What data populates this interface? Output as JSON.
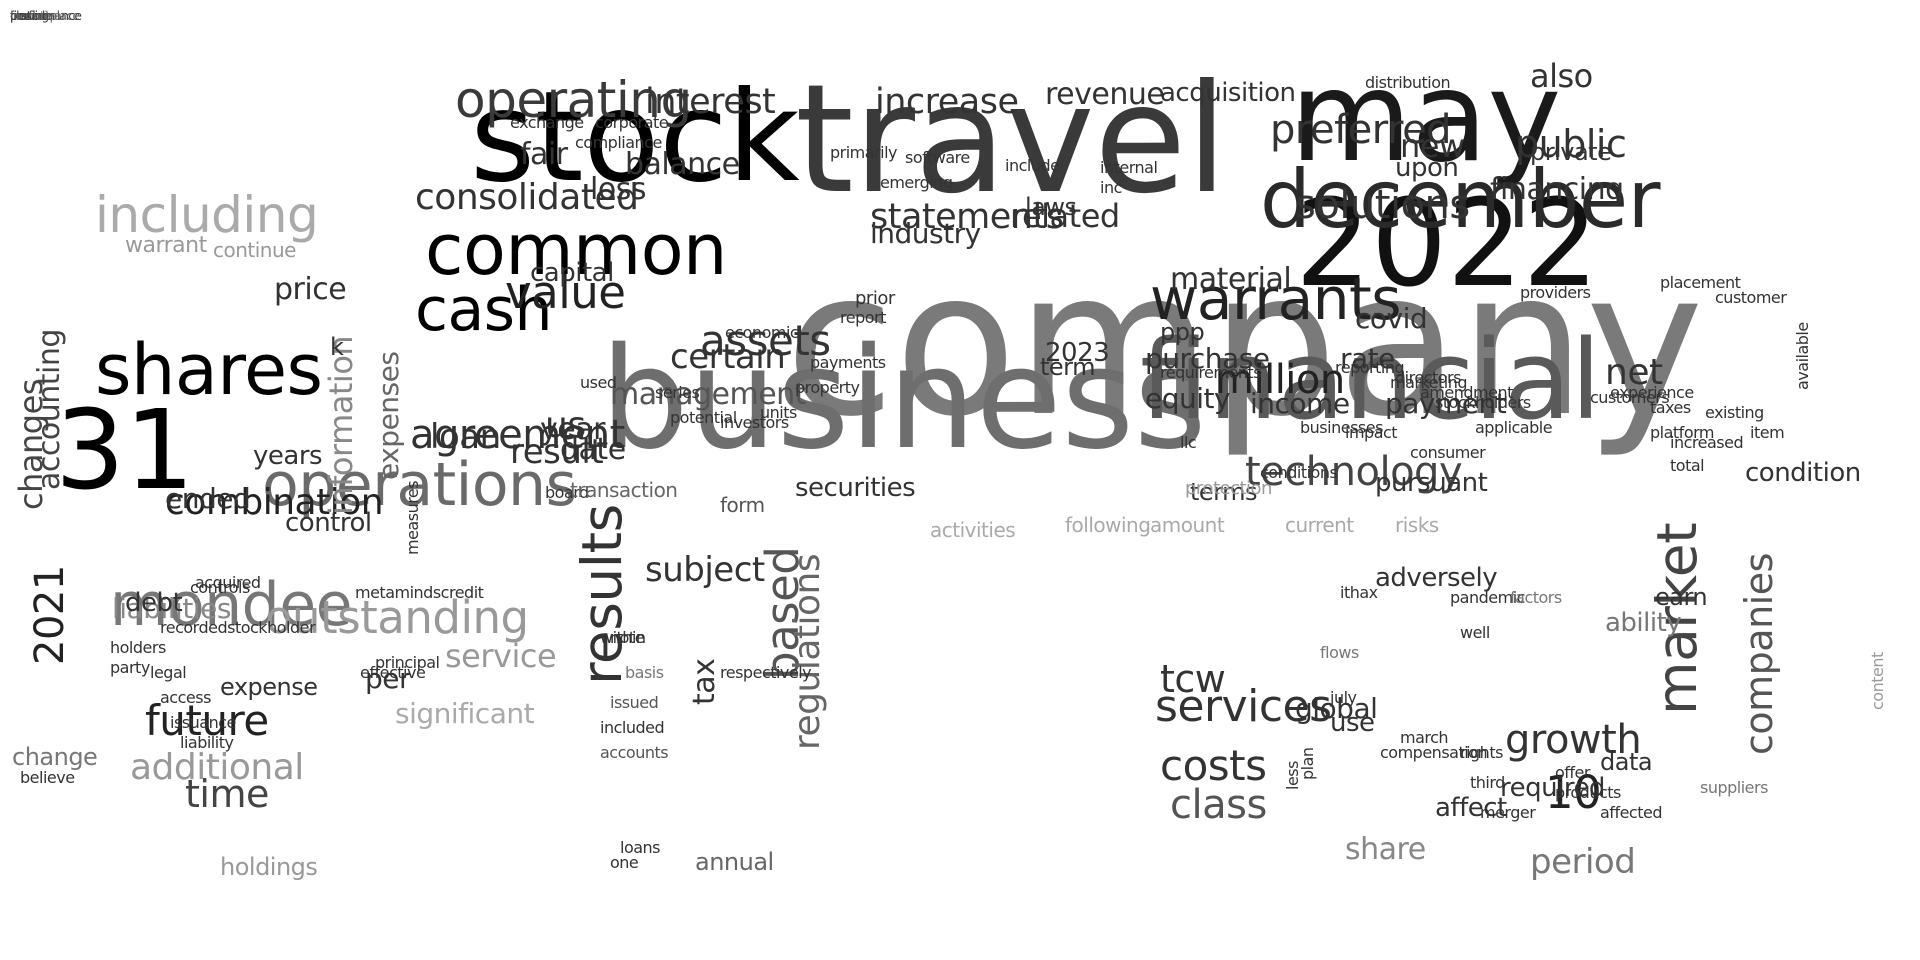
{
  "words": [
    {
      "text": "company",
      "size": 1,
      "shade": "#7a7a7a"
    },
    {
      "text": "travel",
      "size": 1,
      "shade": "#3a3a3a"
    },
    {
      "text": "business",
      "size": 1,
      "shade": "#6e6e6e"
    },
    {
      "text": "financial",
      "size": 1,
      "shade": "#5a5a5a"
    },
    {
      "text": "stock",
      "size": 1,
      "shade": "#000000"
    },
    {
      "text": "may",
      "size": 1,
      "shade": "#1a1a1a"
    },
    {
      "text": "2022",
      "size": 1,
      "shade": "#111111"
    },
    {
      "text": "december",
      "size": 1,
      "shade": "#2a2a2a"
    },
    {
      "text": "31",
      "size": 1,
      "shade": "#000000"
    },
    {
      "text": "operations",
      "size": 1,
      "shade": "#6a6a6a"
    },
    {
      "text": "shares",
      "size": 1,
      "shade": "#000000"
    },
    {
      "text": "mondee",
      "size": 1,
      "shade": "#777777"
    },
    {
      "text": "warrants",
      "size": 1,
      "shade": "#222222"
    },
    {
      "text": "common",
      "size": 1,
      "shade": "#000000"
    },
    {
      "text": "operating",
      "size": 1,
      "shade": "#3a3a3a"
    },
    {
      "text": "cash",
      "size": 1,
      "shade": "#000000"
    },
    {
      "text": "consolidated",
      "size": 1,
      "shade": "#333333"
    },
    {
      "text": "value",
      "size": 1,
      "shade": "#222222"
    },
    {
      "text": "including",
      "size": 1,
      "shade": "#aaaaaa"
    },
    {
      "text": "technology",
      "size": 1,
      "shade": "#444444"
    },
    {
      "text": "results",
      "size": 1,
      "shade": "#333333"
    },
    {
      "text": "statements",
      "size": 1,
      "shade": "#333333"
    },
    {
      "text": "solutions",
      "size": 1,
      "shade": "#333333"
    },
    {
      "text": "assets",
      "size": 1,
      "shade": "#333333"
    },
    {
      "text": "agreement",
      "size": 1,
      "shade": "#333333"
    },
    {
      "text": "public",
      "size": 1,
      "shade": "#333333"
    },
    {
      "text": "preferred",
      "size": 1,
      "shade": "#333333"
    },
    {
      "text": "market",
      "size": 1,
      "shade": "#444444"
    },
    {
      "text": "services",
      "size": 1,
      "shade": "#333333"
    },
    {
      "text": "million",
      "size": 1,
      "shade": "#222222"
    },
    {
      "text": "related",
      "size": 1,
      "shade": "#333333"
    },
    {
      "text": "interest",
      "size": 1,
      "shade": "#333333"
    },
    {
      "text": "revenue",
      "size": 1,
      "shade": "#333333"
    },
    {
      "text": "increase",
      "size": 1,
      "shade": "#333333"
    },
    {
      "text": "acquisition",
      "size": 1,
      "shade": "#333333"
    },
    {
      "text": "outstanding",
      "size": 1,
      "shade": "#999999"
    },
    {
      "text": "combination",
      "size": 1,
      "shade": "#222222"
    },
    {
      "text": "future",
      "size": 1,
      "shade": "#222222"
    },
    {
      "text": "based",
      "size": 1,
      "shade": "#555555"
    },
    {
      "text": "costs",
      "size": 1,
      "shade": "#333333"
    },
    {
      "text": "class",
      "size": 1,
      "shade": "#555555"
    },
    {
      "text": "tcw",
      "size": 1,
      "shade": "#333333"
    },
    {
      "text": "growth",
      "size": 1,
      "shade": "#333333"
    },
    {
      "text": "10",
      "size": 1,
      "shade": "#222222"
    },
    {
      "text": "2021",
      "size": 1,
      "shade": "#222222"
    },
    {
      "text": "ended",
      "size": 1,
      "shade": "#333333"
    },
    {
      "text": "additional",
      "size": 1,
      "shade": "#999999"
    },
    {
      "text": "time",
      "size": 1,
      "shade": "#444444"
    },
    {
      "text": "service",
      "size": 1,
      "shade": "#999999"
    },
    {
      "text": "subject",
      "size": 1,
      "shade": "#333333"
    },
    {
      "text": "loan",
      "size": 1,
      "shade": "#333333"
    },
    {
      "text": "certain",
      "size": 1,
      "shade": "#333333"
    },
    {
      "text": "management",
      "size": 1,
      "shade": "#555555"
    },
    {
      "text": "result",
      "size": 1,
      "shade": "#333333"
    },
    {
      "text": "net",
      "size": 1,
      "shade": "#333333"
    },
    {
      "text": "also",
      "size": 1,
      "shade": "#333333"
    },
    {
      "text": "financing",
      "size": 1,
      "shade": "#333333"
    },
    {
      "text": "new",
      "size": 1,
      "shade": "#333333"
    },
    {
      "text": "upon",
      "size": 1,
      "shade": "#333333"
    },
    {
      "text": "year",
      "size": 1,
      "shade": "#333333"
    },
    {
      "text": "us",
      "size": 1,
      "shade": "#333333"
    },
    {
      "text": "date",
      "size": 1,
      "shade": "#333333"
    },
    {
      "text": "price",
      "size": 1,
      "shade": "#333333"
    },
    {
      "text": "information",
      "size": 1,
      "shade": "#888888"
    },
    {
      "text": "expenses",
      "size": 1,
      "shade": "#666666"
    },
    {
      "text": "changes",
      "size": 1,
      "shade": "#444444"
    },
    {
      "text": "accounting",
      "size": 1,
      "shade": "#444444"
    },
    {
      "text": "liabilities",
      "size": 1,
      "shade": "#888888"
    },
    {
      "text": "share",
      "size": 1,
      "shade": "#888888"
    },
    {
      "text": "period",
      "size": 1,
      "shade": "#777777"
    },
    {
      "text": "companies",
      "size": 1,
      "shade": "#555555"
    },
    {
      "text": "ppp",
      "size": 1,
      "shade": "#333333"
    },
    {
      "text": "fair",
      "size": 1,
      "shade": "#333333"
    },
    {
      "text": "loss",
      "size": 1,
      "shade": "#333333"
    },
    {
      "text": "balance",
      "size": 1,
      "shade": "#333333"
    },
    {
      "text": "laws",
      "size": 1,
      "shade": "#333333"
    },
    {
      "text": "material",
      "size": 1,
      "shade": "#333333"
    },
    {
      "text": "payment",
      "size": 1,
      "shade": "#333333"
    },
    {
      "text": "covid",
      "size": 1,
      "shade": "#333333"
    },
    {
      "text": "rate",
      "size": 1,
      "shade": "#333333"
    },
    {
      "text": "income",
      "size": 1,
      "shade": "#333333"
    },
    {
      "text": "equity",
      "size": 1,
      "shade": "#333333"
    },
    {
      "text": "purchase",
      "size": 1,
      "shade": "#333333"
    },
    {
      "text": "term",
      "size": 1,
      "shade": "#333333"
    },
    {
      "text": "2023",
      "size": 1,
      "shade": "#333333"
    },
    {
      "text": "industry",
      "size": 1,
      "shade": "#333333"
    },
    {
      "text": "capital",
      "size": 1,
      "shade": "#333333"
    },
    {
      "text": "condition",
      "size": 1,
      "shade": "#333333"
    },
    {
      "text": "pursuant",
      "size": 1,
      "shade": "#333333"
    },
    {
      "text": "securities",
      "size": 1,
      "shade": "#333333"
    },
    {
      "text": "terms",
      "size": 1,
      "shade": "#333333"
    },
    {
      "text": "private",
      "size": 1,
      "shade": "#333333"
    },
    {
      "text": "adversely",
      "size": 1,
      "shade": "#333333"
    },
    {
      "text": "ability",
      "size": 1,
      "shade": "#777777"
    },
    {
      "text": "global",
      "size": 1,
      "shade": "#333333"
    },
    {
      "text": "use",
      "size": 1,
      "shade": "#333333"
    },
    {
      "text": "required",
      "size": 1,
      "shade": "#333333"
    },
    {
      "text": "affect",
      "size": 1,
      "shade": "#333333"
    },
    {
      "text": "data",
      "size": 1,
      "shade": "#333333"
    },
    {
      "text": "earn",
      "size": 1,
      "shade": "#333333"
    },
    {
      "text": "expense",
      "size": 1,
      "shade": "#333333"
    },
    {
      "text": "tax",
      "size": 1,
      "shade": "#333333"
    },
    {
      "text": "regulations",
      "size": 1,
      "shade": "#666666"
    },
    {
      "text": "annual",
      "size": 1,
      "shade": "#666666"
    },
    {
      "text": "holdings",
      "size": 1,
      "shade": "#999999"
    },
    {
      "text": "significant",
      "size": 1,
      "shade": "#aaaaaa"
    },
    {
      "text": "per",
      "size": 1,
      "shade": "#333333"
    },
    {
      "text": "years",
      "size": 1,
      "shade": "#333333"
    },
    {
      "text": "k",
      "size": 1,
      "shade": "#333333"
    },
    {
      "text": "control",
      "size": 1,
      "shade": "#333333"
    },
    {
      "text": "debt",
      "size": 1,
      "shade": "#333333"
    },
    {
      "text": "change",
      "size": 1,
      "shade": "#777777"
    },
    {
      "text": "warrant",
      "size": 1,
      "shade": "#999999"
    },
    {
      "text": "continue",
      "size": 1,
      "shade": "#999999"
    },
    {
      "text": "activities",
      "size": 1,
      "shade": "#aaaaaa"
    },
    {
      "text": "following",
      "size": 1,
      "shade": "#aaaaaa"
    },
    {
      "text": "amount",
      "size": 1,
      "shade": "#aaaaaa"
    },
    {
      "text": "current",
      "size": 1,
      "shade": "#aaaaaa"
    },
    {
      "text": "risks",
      "size": 1,
      "shade": "#aaaaaa"
    },
    {
      "text": "protection",
      "size": 1,
      "shade": "#999999"
    },
    {
      "text": "form",
      "size": 1,
      "shade": "#555555"
    },
    {
      "text": "board",
      "size": 1,
      "shade": "#333333"
    },
    {
      "text": "transaction",
      "size": 1,
      "shade": "#666666"
    },
    {
      "text": "exchange",
      "size": 1,
      "shade": "#333333"
    },
    {
      "text": "compliance",
      "size": 1,
      "shade": "#333333"
    },
    {
      "text": "corporate",
      "size": 1,
      "shade": "#333333"
    },
    {
      "text": "primarily",
      "size": 1,
      "shade": "#333333"
    },
    {
      "text": "software",
      "size": 1,
      "shade": "#333333"
    },
    {
      "text": "emerging",
      "size": 1,
      "shade": "#333333"
    },
    {
      "text": "include",
      "size": 1,
      "shade": "#333333"
    },
    {
      "text": "internal",
      "size": 1,
      "shade": "#333333"
    },
    {
      "text": "inc",
      "size": 1,
      "shade": "#333333"
    },
    {
      "text": "prior",
      "size": 1,
      "shade": "#333333"
    },
    {
      "text": "report",
      "size": 1,
      "shade": "#333333"
    },
    {
      "text": "economic",
      "size": 1,
      "shade": "#333333"
    },
    {
      "text": "payments",
      "size": 1,
      "shade": "#333333"
    },
    {
      "text": "property",
      "size": 1,
      "shade": "#333333"
    },
    {
      "text": "units",
      "size": 1,
      "shade": "#333333"
    },
    {
      "text": "investors",
      "size": 1,
      "shade": "#333333"
    },
    {
      "text": "potential",
      "size": 1,
      "shade": "#333333"
    },
    {
      "text": "series",
      "size": 1,
      "shade": "#333333"
    },
    {
      "text": "used",
      "size": 1,
      "shade": "#333333"
    },
    {
      "text": "requirements",
      "size": 1,
      "shade": "#333333"
    },
    {
      "text": "providers",
      "size": 1,
      "shade": "#333333"
    },
    {
      "text": "placement",
      "size": 1,
      "shade": "#333333"
    },
    {
      "text": "customer",
      "size": 1,
      "shade": "#333333"
    },
    {
      "text": "customers",
      "size": 1,
      "shade": "#333333"
    },
    {
      "text": "taxes",
      "size": 1,
      "shade": "#333333"
    },
    {
      "text": "existing",
      "size": 1,
      "shade": "#333333"
    },
    {
      "text": "platform",
      "size": 1,
      "shade": "#333333"
    },
    {
      "text": "increased",
      "size": 1,
      "shade": "#333333"
    },
    {
      "text": "item",
      "size": 1,
      "shade": "#333333"
    },
    {
      "text": "available",
      "size": 1,
      "shade": "#333333"
    },
    {
      "text": "total",
      "size": 1,
      "shade": "#333333"
    },
    {
      "text": "consumer",
      "size": 1,
      "shade": "#333333"
    },
    {
      "text": "experience",
      "size": 1,
      "shade": "#333333"
    },
    {
      "text": "stockholders",
      "size": 1,
      "shade": "#333333"
    },
    {
      "text": "businesses",
      "size": 1,
      "shade": "#333333"
    },
    {
      "text": "llc",
      "size": 1,
      "shade": "#333333"
    },
    {
      "text": "applicable",
      "size": 1,
      "shade": "#333333"
    },
    {
      "text": "impact",
      "size": 1,
      "shade": "#333333"
    },
    {
      "text": "reporting",
      "size": 1,
      "shade": "#333333"
    },
    {
      "text": "amendment",
      "size": 1,
      "shade": "#333333"
    },
    {
      "text": "marketing",
      "size": 1,
      "shade": "#333333"
    },
    {
      "text": "directors",
      "size": 1,
      "shade": "#333333"
    },
    {
      "text": "conditions",
      "size": 1,
      "shade": "#333333"
    },
    {
      "text": "distribution",
      "size": 1,
      "shade": "#333333"
    },
    {
      "text": "measures",
      "size": 1,
      "shade": "#333333"
    },
    {
      "text": "recordedstockholder",
      "size": 1,
      "shade": "#333333"
    },
    {
      "text": "metamindscredit",
      "size": 1,
      "shade": "#333333"
    },
    {
      "text": "acquired",
      "size": 1,
      "shade": "#333333"
    },
    {
      "text": "controls",
      "size": 1,
      "shade": "#333333"
    },
    {
      "text": "holders",
      "size": 1,
      "shade": "#333333"
    },
    {
      "text": "party",
      "size": 1,
      "shade": "#333333"
    },
    {
      "text": "legal",
      "size": 1,
      "shade": "#333333"
    },
    {
      "text": "access",
      "size": 1,
      "shade": "#333333"
    },
    {
      "text": "issuance",
      "size": 1,
      "shade": "#333333"
    },
    {
      "text": "liability",
      "size": 1,
      "shade": "#333333"
    },
    {
      "text": "believe",
      "size": 1,
      "shade": "#333333"
    },
    {
      "text": "effective",
      "size": 1,
      "shade": "#333333"
    },
    {
      "text": "principal",
      "size": 1,
      "shade": "#333333"
    },
    {
      "text": "within",
      "size": 1,
      "shade": "#333333"
    },
    {
      "text": "note",
      "size": 1,
      "shade": "#333333"
    },
    {
      "text": "basis",
      "size": 1,
      "shade": "#777777"
    },
    {
      "text": "respectively",
      "size": 1,
      "shade": "#333333"
    },
    {
      "text": "included",
      "size": 1,
      "shade": "#333333"
    },
    {
      "text": "accounts",
      "size": 1,
      "shade": "#555555"
    },
    {
      "text": "issued",
      "size": 1,
      "shade": "#555555"
    },
    {
      "text": "loans",
      "size": 1,
      "shade": "#333333"
    },
    {
      "text": "one",
      "size": 1,
      "shade": "#333333"
    },
    {
      "text": "ithax",
      "size": 1,
      "shade": "#333333"
    },
    {
      "text": "pandemic",
      "size": 1,
      "shade": "#333333"
    },
    {
      "text": "well",
      "size": 1,
      "shade": "#333333"
    },
    {
      "text": "factors",
      "size": 1,
      "shade": "#777777"
    },
    {
      "text": "flows",
      "size": 1,
      "shade": "#777777"
    },
    {
      "text": "compensation",
      "size": 1,
      "shade": "#333333"
    },
    {
      "text": "rights",
      "size": 1,
      "shade": "#333333"
    },
    {
      "text": "march",
      "size": 1,
      "shade": "#333333"
    },
    {
      "text": "july",
      "size": 1,
      "shade": "#333333"
    },
    {
      "text": "third",
      "size": 1,
      "shade": "#333333"
    },
    {
      "text": "offer",
      "size": 1,
      "shade": "#333333"
    },
    {
      "text": "merger",
      "size": 1,
      "shade": "#333333"
    },
    {
      "text": "products",
      "size": 1,
      "shade": "#333333"
    },
    {
      "text": "affected",
      "size": 1,
      "shade": "#333333"
    },
    {
      "text": "suppliers",
      "size": 1,
      "shade": "#777777"
    },
    {
      "text": "content",
      "size": 1,
      "shade": "#999999"
    },
    {
      "text": "less",
      "size": 1,
      "shade": "#333333"
    },
    {
      "text": "plan",
      "size": 1,
      "shade": "#333333"
    },
    {
      "text": "provide",
      "size": 1,
      "shade": "#333333"
    },
    {
      "text": "performance",
      "size": 1,
      "shade": "#333333"
    },
    {
      "text": "first",
      "size": 1,
      "shade": "#333333"
    },
    {
      "text": "incentive",
      "size": 1,
      "shade": "#777777"
    },
    {
      "text": "closing",
      "size": 1,
      "shade": "#333333"
    },
    {
      "text": "marketplace",
      "size": 1,
      "shade": "#555555"
    }
  ]
}
